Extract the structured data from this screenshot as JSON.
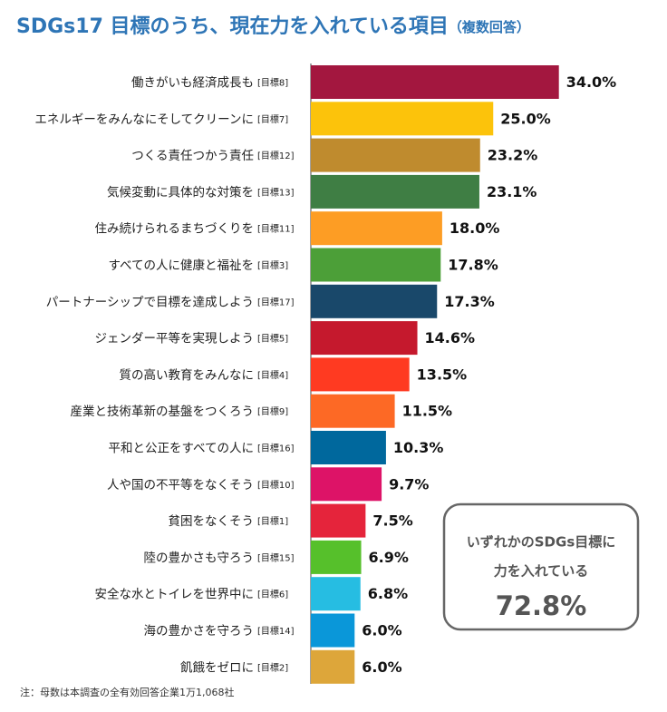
{
  "chart_data": {
    "type": "bar",
    "orientation": "horizontal",
    "title": "SDGs17 目標のうち、現在力を入れている項目",
    "subtitle": "（複数回答）",
    "categories": [
      "働きがいも経済成長も",
      "エネルギーをみんなにそしてクリーンに",
      "つくる責任つかう責任",
      "気候変動に具体的な対策を",
      "住み続けられるまちづくりを",
      "すべての人に健康と福祉を",
      "パートナーシップで目標を達成しよう",
      "ジェンダー平等を実現しよう",
      "質の高い教育をみんなに",
      "産業と技術革新の基盤をつくろう",
      "平和と公正をすべての人に",
      "人や国の不平等をなくそう",
      "貧困をなくそう",
      "陸の豊かさも守ろう",
      "安全な水とトイレを世界中に",
      "海の豊かさを守ろう",
      "飢餓をゼロに"
    ],
    "goal_tags": [
      "[目標8]",
      "[目標7]",
      "[目標12]",
      "[目標13]",
      "[目標11]",
      "[目標3]",
      "[目標17]",
      "[目標5]",
      "[目標4]",
      "[目標9]",
      "[目標16]",
      "[目標10]",
      "[目標1]",
      "[目標15]",
      "[目標6]",
      "[目標14]",
      "[目標2]"
    ],
    "values": [
      34.0,
      25.0,
      23.2,
      23.1,
      18.0,
      17.8,
      17.3,
      14.6,
      13.5,
      11.5,
      10.3,
      9.7,
      7.5,
      6.9,
      6.8,
      6.0,
      6.0
    ],
    "value_labels": [
      "34.0%",
      "25.0%",
      "23.2%",
      "23.1%",
      "18.0%",
      "17.8%",
      "17.3%",
      "14.6%",
      "13.5%",
      "11.5%",
      "10.3%",
      "9.7%",
      "7.5%",
      "6.9%",
      "6.8%",
      "6.0%",
      "6.0%"
    ],
    "colors": [
      "#a3173f",
      "#fcc30b",
      "#bf8b2e",
      "#3f7e44",
      "#fd9d24",
      "#4c9f38",
      "#19486a",
      "#c5192d",
      "#ff3a21",
      "#fd6925",
      "#00689d",
      "#dd1367",
      "#e5243b",
      "#56c02b",
      "#26bde2",
      "#0a97d9",
      "#dda63a"
    ],
    "xlim": [
      0,
      40
    ],
    "callout": {
      "lines": [
        "いずれかのSDGs目標に",
        "力を入れている"
      ],
      "value_label": "72.8%"
    },
    "note": "注：母数は本調査の全有効回答企業1万1,068社"
  }
}
